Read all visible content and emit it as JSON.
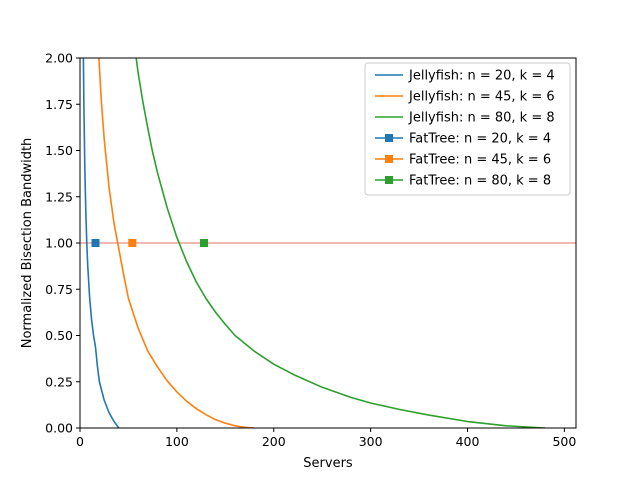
{
  "chart_data": {
    "type": "line",
    "title": "",
    "xlabel": "Servers",
    "ylabel": "Normalized Bisection Bandwidth",
    "xlim": [
      0,
      512
    ],
    "ylim": [
      0,
      2.0
    ],
    "xticks": [
      0,
      100,
      200,
      300,
      400,
      500
    ],
    "yticks": [
      0.0,
      0.25,
      0.5,
      0.75,
      1.0,
      1.25,
      1.5,
      1.75,
      2.0
    ],
    "xtick_labels": [
      "0",
      "100",
      "200",
      "300",
      "400",
      "500"
    ],
    "ytick_labels": [
      "0.00",
      "0.25",
      "0.50",
      "0.75",
      "1.00",
      "1.25",
      "1.50",
      "1.75",
      "2.00"
    ],
    "grid": false,
    "legend_position": "top-right",
    "reference_line": {
      "y": 1.0,
      "color": "#e8a09a"
    },
    "series": [
      {
        "name": "Jellyfish: n = 20, k = 4",
        "kind": "curve",
        "color": "#1f77b4",
        "x": [
          3.5,
          4,
          5,
          6,
          7,
          8,
          10,
          12,
          14,
          16,
          18,
          20,
          25,
          30,
          35,
          40
        ],
        "y": [
          2.0,
          1.75,
          1.4,
          1.17,
          1.0,
          0.875,
          0.7,
          0.583,
          0.5,
          0.4375,
          0.333,
          0.25,
          0.15,
          0.083,
          0.036,
          0.0
        ]
      },
      {
        "name": "Jellyfish: n = 45, k = 6",
        "kind": "curve",
        "color": "#ff7f0e",
        "x": [
          19.5,
          22,
          25,
          30,
          35,
          40,
          45,
          50,
          60,
          70,
          80,
          90,
          100,
          110,
          120,
          130,
          140,
          150,
          160,
          170,
          180
        ],
        "y": [
          2.0,
          1.77,
          1.56,
          1.3,
          1.11,
          0.97,
          0.83,
          0.7,
          0.54,
          0.415,
          0.33,
          0.255,
          0.195,
          0.145,
          0.105,
          0.072,
          0.045,
          0.026,
          0.012,
          0.004,
          0.0
        ]
      },
      {
        "name": "Jellyfish: n = 80, k = 8",
        "kind": "curve",
        "color": "#2ca02c",
        "x": [
          58,
          60,
          65,
          70,
          75,
          80,
          90,
          100,
          110,
          120,
          130,
          140,
          150,
          160,
          180,
          200,
          220,
          250,
          280,
          300,
          330,
          360,
          400,
          440,
          480
        ],
        "y": [
          2.0,
          1.92,
          1.76,
          1.62,
          1.49,
          1.38,
          1.19,
          1.03,
          0.9,
          0.79,
          0.7,
          0.625,
          0.56,
          0.5,
          0.415,
          0.345,
          0.29,
          0.22,
          0.165,
          0.135,
          0.1,
          0.07,
          0.035,
          0.012,
          0.0
        ]
      },
      {
        "name": "FatTree: n = 20, k = 4",
        "kind": "marker",
        "marker": "square",
        "color": "#1f77b4",
        "x": [
          16
        ],
        "y": [
          1.0
        ]
      },
      {
        "name": "FatTree: n = 45, k = 6",
        "kind": "marker",
        "marker": "square",
        "color": "#ff7f0e",
        "x": [
          54
        ],
        "y": [
          1.0
        ]
      },
      {
        "name": "FatTree: n = 80, k = 8",
        "kind": "marker",
        "marker": "square",
        "color": "#2ca02c",
        "x": [
          128
        ],
        "y": [
          1.0
        ]
      }
    ]
  }
}
